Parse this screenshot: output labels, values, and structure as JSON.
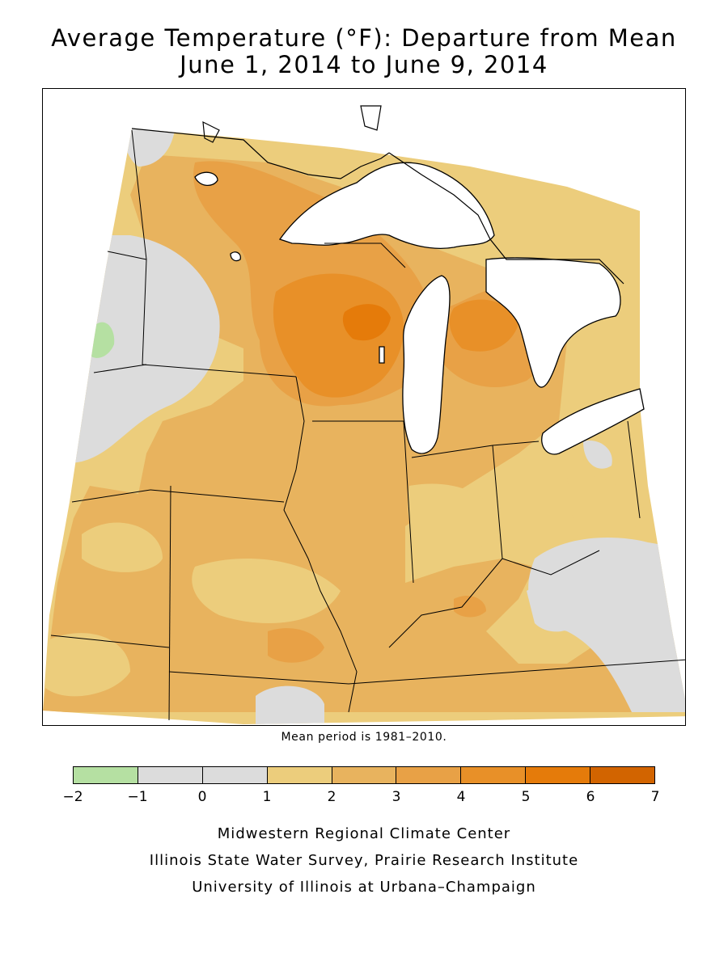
{
  "title": {
    "line1": "Average Temperature (°F): Departure from Mean",
    "line2": "June 1, 2014 to June 9, 2014"
  },
  "note": "Mean period is 1981–2010.",
  "legend": {
    "ticks": [
      "−2",
      "−1",
      "0",
      "1",
      "2",
      "3",
      "4",
      "5",
      "6",
      "7"
    ],
    "bins": [
      {
        "range": [
          -2,
          -1
        ],
        "color": "#b5e0a2"
      },
      {
        "range": [
          -1,
          0
        ],
        "color": "#dcdcdc"
      },
      {
        "range": [
          0,
          1
        ],
        "color": "#dcdcdc"
      },
      {
        "range": [
          1,
          2
        ],
        "color": "#eccd7c"
      },
      {
        "range": [
          2,
          3
        ],
        "color": "#e8b35e"
      },
      {
        "range": [
          3,
          4
        ],
        "color": "#e8a146"
      },
      {
        "range": [
          4,
          5
        ],
        "color": "#e89028"
      },
      {
        "range": [
          5,
          6
        ],
        "color": "#e57b0a"
      },
      {
        "range": [
          6,
          7
        ],
        "color": "#d26400"
      }
    ]
  },
  "map": {
    "lake_color": "#ffffff",
    "boundary_color": "#000000"
  },
  "credits": [
    "Midwestern Regional Climate Center",
    "Illinois State Water Survey, Prairie Research Institute",
    "University of Illinois at Urbana–Champaign"
  ]
}
